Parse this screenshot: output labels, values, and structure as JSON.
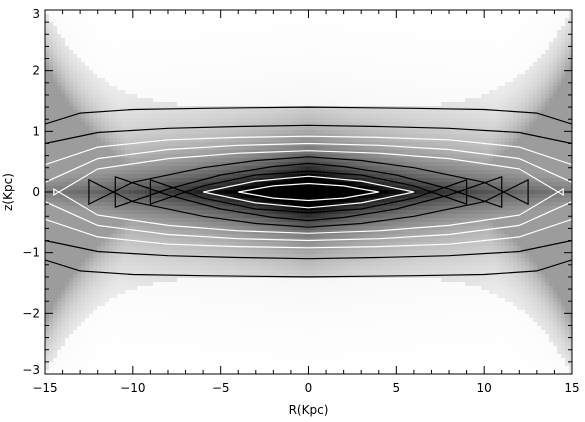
{
  "chart_data": {
    "type": "heatmap",
    "title": "",
    "xlabel": "R(Kpc)",
    "ylabel": "z(Kpc)",
    "xlim": [
      -15,
      15
    ],
    "ylim": [
      -3,
      3
    ],
    "x_ticks": [
      -15,
      -10,
      -5,
      0,
      5,
      10,
      15
    ],
    "y_ticks": [
      -3,
      -2,
      -1,
      0,
      1,
      2,
      3
    ],
    "x_tick_labels": [
      "−15",
      "−10",
      "−5",
      "0",
      "5",
      "10",
      "15"
    ],
    "y_tick_labels": [
      "−3",
      "−2",
      "−1",
      "0",
      "1",
      "2",
      "3"
    ],
    "colormap": "grayscale (dark = high density)",
    "colors": {
      "background": "#ffffff",
      "peak": "#000000",
      "contour_dark": "#000000",
      "contour_light": "#ffffff"
    },
    "contour_levels": [
      {
        "level": 1,
        "color": "black",
        "R": [
          -15,
          -13,
          -10,
          -6,
          -3,
          0,
          3,
          6,
          10,
          13,
          15
        ],
        "z": [
          1.12,
          1.3,
          1.36,
          1.38,
          1.39,
          1.4,
          1.39,
          1.38,
          1.36,
          1.3,
          1.12
        ]
      },
      {
        "level": 2,
        "color": "black",
        "R": [
          -15,
          -12,
          -8,
          -4,
          0,
          4,
          8,
          12,
          15
        ],
        "z": [
          0.8,
          0.98,
          1.05,
          1.08,
          1.1,
          1.08,
          1.05,
          0.98,
          0.8
        ]
      },
      {
        "level": 3,
        "color": "white",
        "R": [
          -15,
          -12,
          -8,
          -4,
          0,
          4,
          8,
          12,
          15
        ],
        "z": [
          0.45,
          0.74,
          0.86,
          0.9,
          0.92,
          0.9,
          0.86,
          0.74,
          0.45
        ]
      },
      {
        "level": 4,
        "color": "white",
        "R": [
          -15,
          -12,
          -8,
          -4,
          0,
          4,
          8,
          12,
          15
        ],
        "z": [
          0.16,
          0.55,
          0.7,
          0.77,
          0.8,
          0.77,
          0.7,
          0.55,
          0.16
        ]
      },
      {
        "level": 5,
        "color": "white",
        "R": [
          -14.5,
          -12,
          -8,
          -4,
          0,
          4,
          8,
          12,
          14.5
        ],
        "z": [
          -0.05,
          0.38,
          0.55,
          0.64,
          0.68,
          0.64,
          0.55,
          0.38,
          -0.05
        ]
      },
      {
        "level": 6,
        "color": "black",
        "R": [
          -12.5,
          -10,
          -6,
          -3,
          0,
          3,
          6,
          10,
          12.5
        ],
        "z": [
          -0.2,
          0.16,
          0.4,
          0.52,
          0.58,
          0.52,
          0.4,
          0.16,
          -0.2
        ]
      },
      {
        "level": 7,
        "color": "black",
        "R": [
          -11,
          -8,
          -5,
          -2,
          0,
          2,
          5,
          8,
          11
        ],
        "z": [
          -0.25,
          0.05,
          0.28,
          0.42,
          0.47,
          0.42,
          0.28,
          0.05,
          -0.25
        ]
      },
      {
        "level": 8,
        "color": "black",
        "R": [
          -9,
          -6,
          -3,
          0,
          3,
          6,
          9
        ],
        "z": [
          -0.2,
          0.1,
          0.28,
          0.34,
          0.28,
          0.1,
          -0.2
        ]
      },
      {
        "level": 9,
        "color": "white",
        "R": [
          -6,
          -3,
          0,
          3,
          6
        ],
        "z": [
          0,
          0.18,
          0.26,
          0.18,
          0
        ]
      },
      {
        "level": 10,
        "color": "white",
        "R": [
          -4,
          -2,
          0,
          2,
          4
        ],
        "z": [
          0,
          0.1,
          0.14,
          0.1,
          0
        ]
      },
      {
        "level": 11,
        "color": "black",
        "R": [
          -2.5,
          0,
          2.5
        ],
        "z": [
          0,
          0.08,
          0
        ]
      }
    ]
  }
}
